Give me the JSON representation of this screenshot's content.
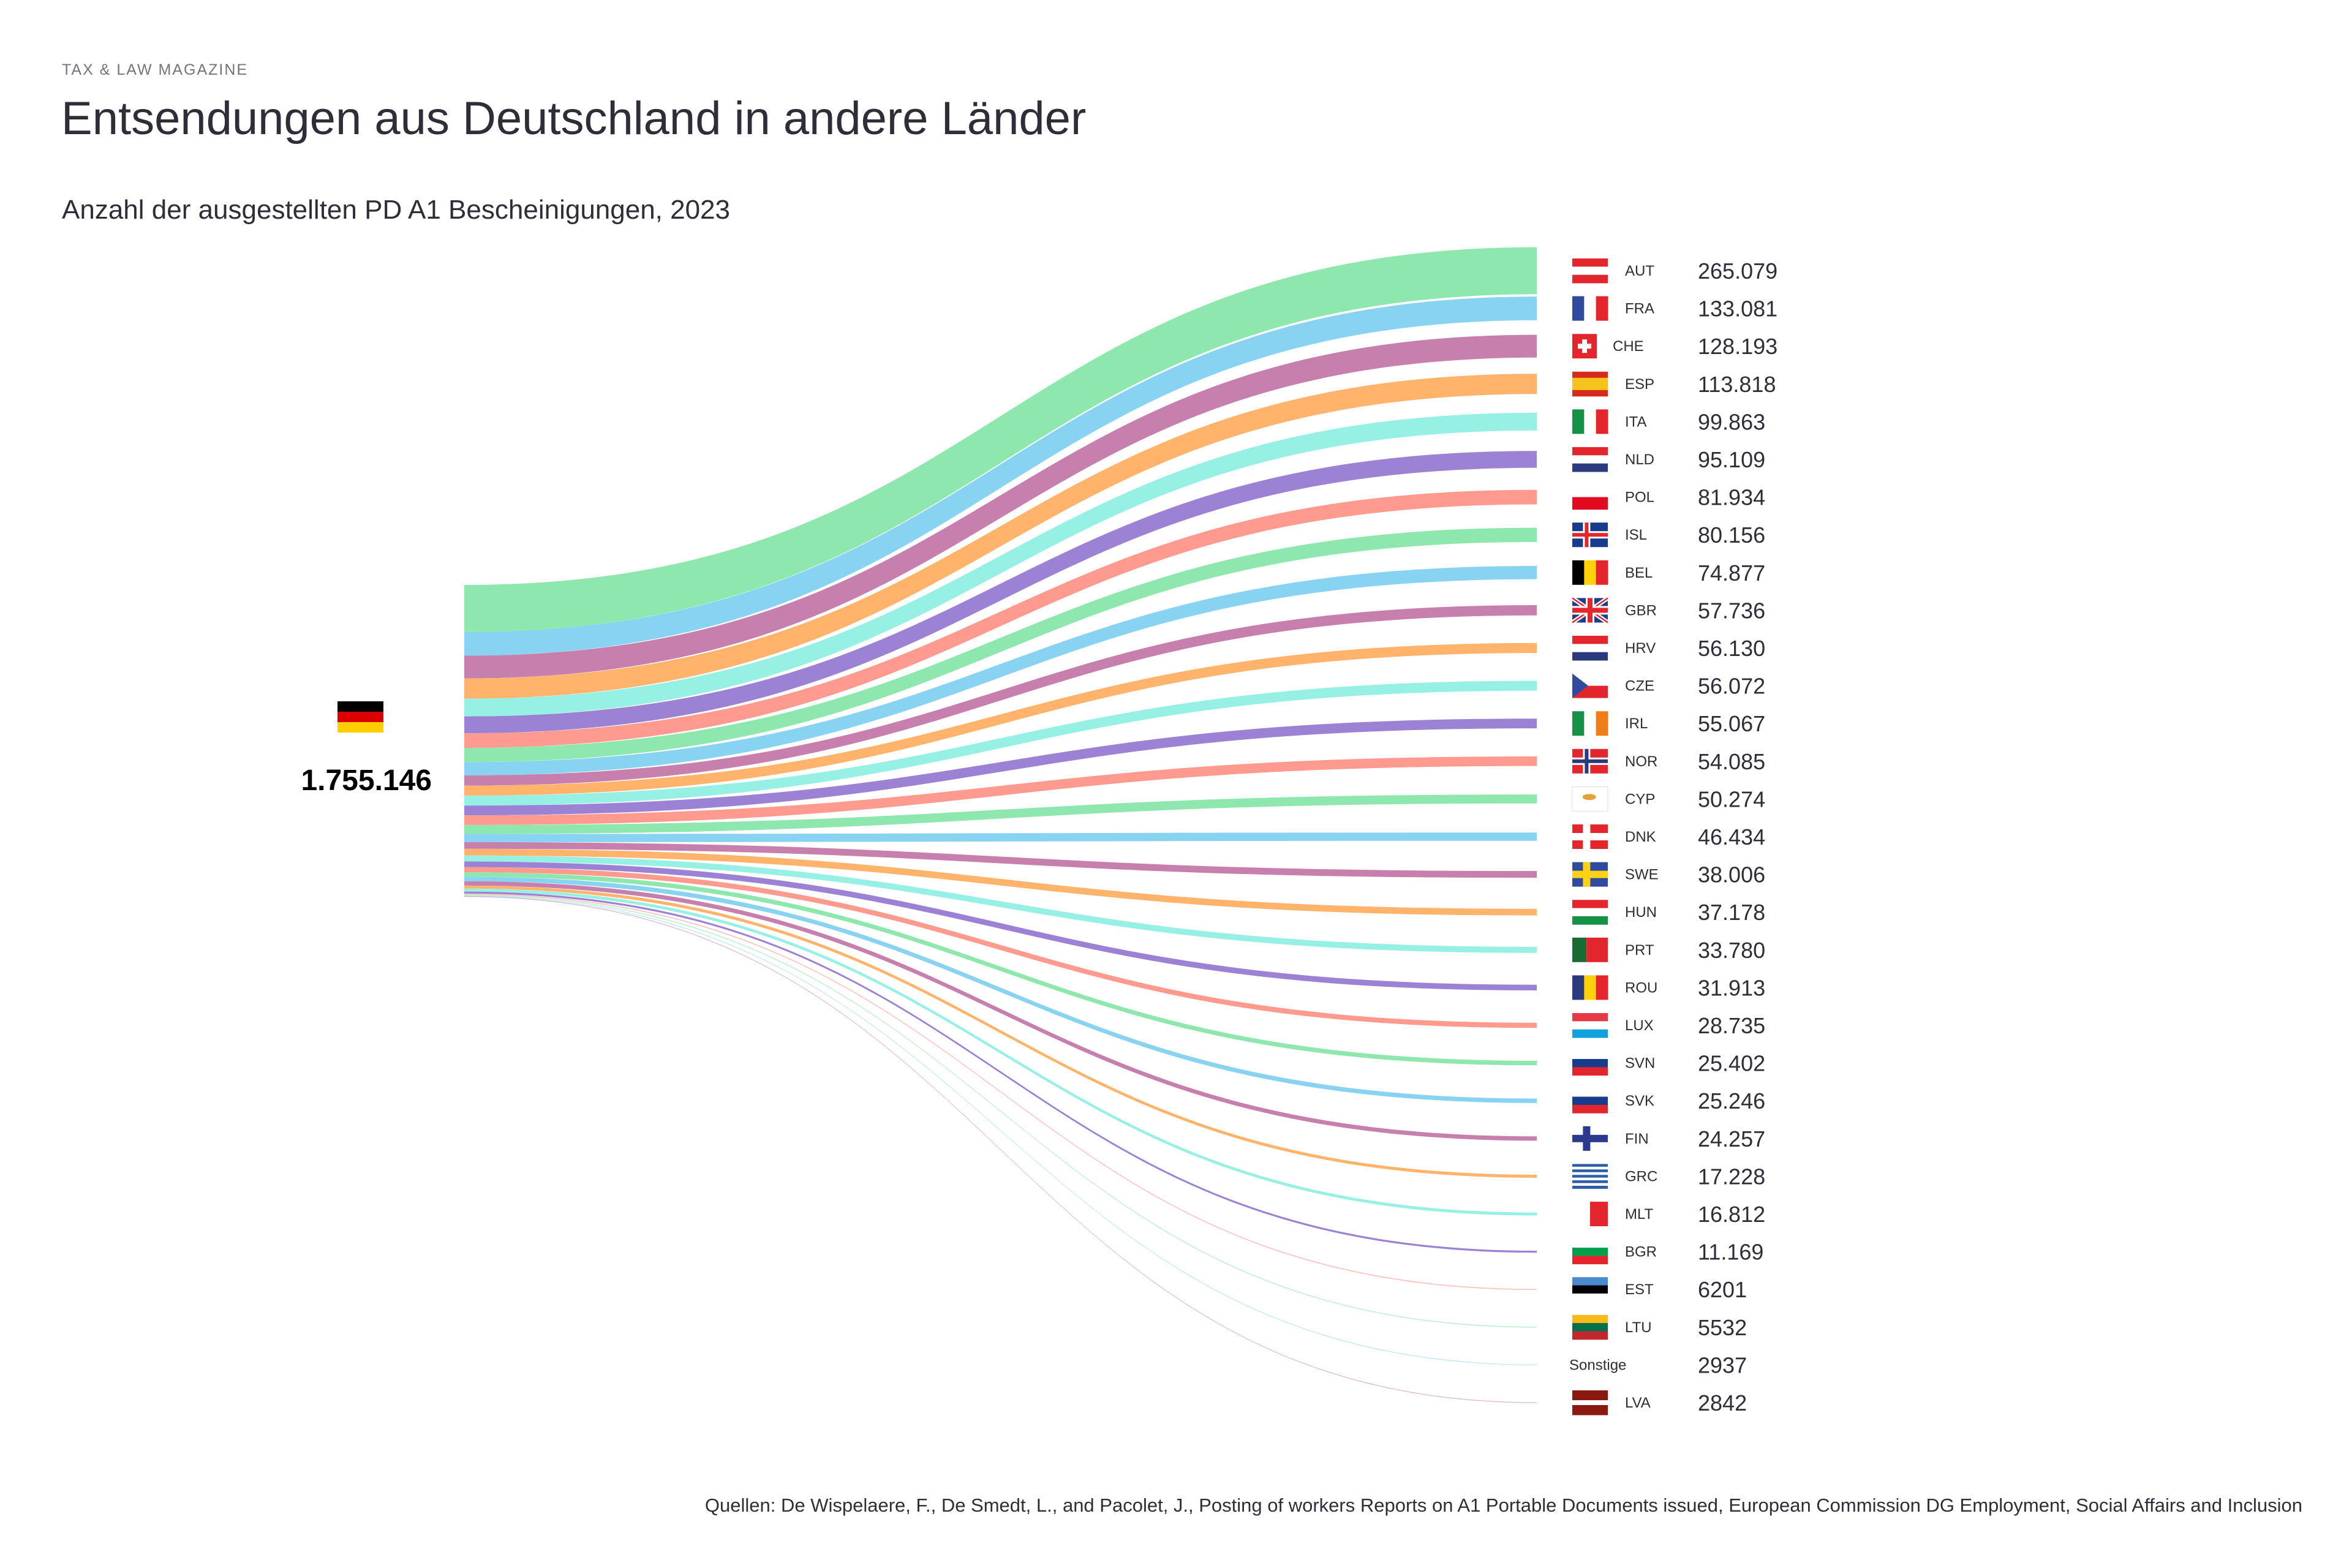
{
  "header": {
    "kicker": "TAX & LAW MAGAZINE",
    "title": "Entsendungen aus Deutschland in andere Länder",
    "subtitle": "Anzahl der ausgestellten PD A1 Bescheinigungen, 2023"
  },
  "footer": {
    "source": "Quellen: De Wispelaere, F., De Smedt, L., and Pacolet, J., Posting of workers Reports on A1 Portable Documents issued, European Commission DG Employment, Social Affairs and Inclusion"
  },
  "chart_data": {
    "type": "sankey",
    "title": "Entsendungen aus Deutschland in andere Länder",
    "source_node": {
      "code": "DEU",
      "flag": "germany-flag",
      "total_label": "1.755.146",
      "total": 1755146
    },
    "palette": [
      "#8ee8ad",
      "#88d3f2",
      "#c77fae",
      "#ffb36b",
      "#96f0e4",
      "#9b82d4",
      "#ff9a8f"
    ],
    "targets": [
      {
        "code": "AUT",
        "value": 265079,
        "label": "265.079"
      },
      {
        "code": "FRA",
        "value": 133081,
        "label": "133.081"
      },
      {
        "code": "CHE",
        "value": 128193,
        "label": "128.193"
      },
      {
        "code": "ESP",
        "value": 113818,
        "label": "113.818"
      },
      {
        "code": "ITA",
        "value": 99863,
        "label": "99.863"
      },
      {
        "code": "NLD",
        "value": 95109,
        "label": "95.109"
      },
      {
        "code": "POL",
        "value": 81934,
        "label": "81.934"
      },
      {
        "code": "ISL",
        "value": 80156,
        "label": "80.156"
      },
      {
        "code": "BEL",
        "value": 74877,
        "label": "74.877"
      },
      {
        "code": "GBR",
        "value": 57736,
        "label": "57.736"
      },
      {
        "code": "HRV",
        "value": 56130,
        "label": "56.130"
      },
      {
        "code": "CZE",
        "value": 56072,
        "label": "56.072"
      },
      {
        "code": "IRL",
        "value": 55067,
        "label": "55.067"
      },
      {
        "code": "NOR",
        "value": 54085,
        "label": "54.085"
      },
      {
        "code": "CYP",
        "value": 50274,
        "label": "50.274"
      },
      {
        "code": "DNK",
        "value": 46434,
        "label": "46.434"
      },
      {
        "code": "SWE",
        "value": 38006,
        "label": "38.006"
      },
      {
        "code": "HUN",
        "value": 37178,
        "label": "37.178"
      },
      {
        "code": "PRT",
        "value": 33780,
        "label": "33.780"
      },
      {
        "code": "ROU",
        "value": 31913,
        "label": "31.913"
      },
      {
        "code": "LUX",
        "value": 28735,
        "label": "28.735"
      },
      {
        "code": "SVN",
        "value": 25402,
        "label": "25.402"
      },
      {
        "code": "SVK",
        "value": 25246,
        "label": "25.246"
      },
      {
        "code": "FIN",
        "value": 24257,
        "label": "24.257"
      },
      {
        "code": "GRC",
        "value": 17228,
        "label": "17.228"
      },
      {
        "code": "MLT",
        "value": 16812,
        "label": "16.812"
      },
      {
        "code": "BGR",
        "value": 11169,
        "label": "11.169"
      },
      {
        "code": "EST",
        "value": 6201,
        "label": "6201"
      },
      {
        "code": "LTU",
        "value": 5532,
        "label": "5532"
      },
      {
        "code": "Sonstige",
        "value": 2937,
        "label": "2937",
        "no_flag": true
      },
      {
        "code": "LVA",
        "value": 2842,
        "label": "2842"
      }
    ]
  }
}
